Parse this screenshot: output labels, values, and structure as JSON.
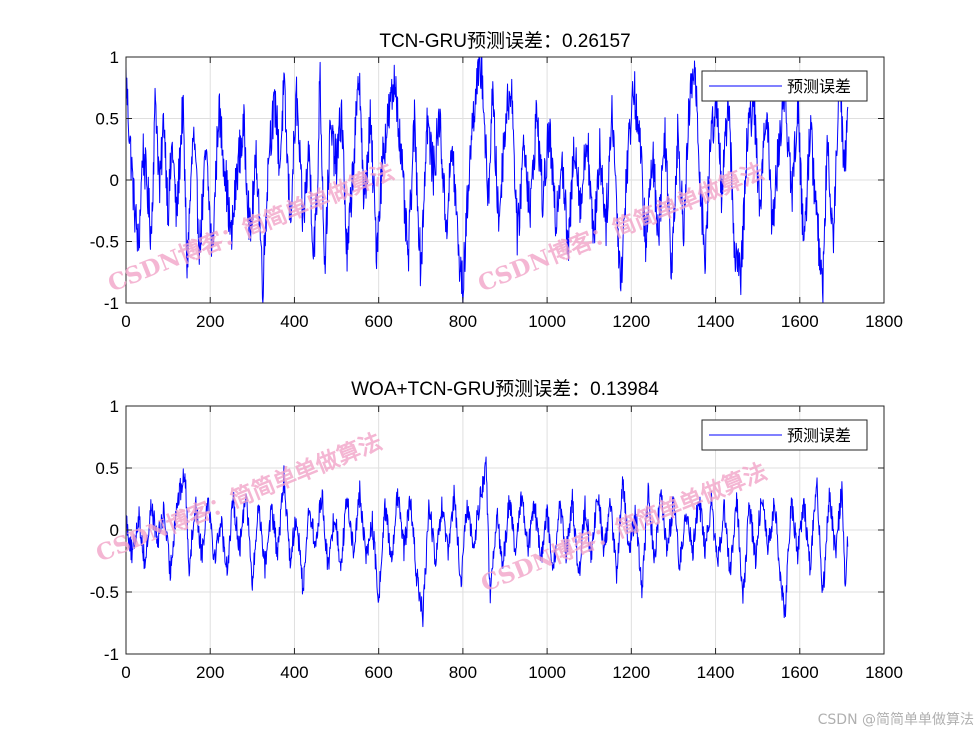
{
  "figure": {
    "colors": {
      "line": "#0000ff",
      "axes": "#262626",
      "grid": "#dfdfdf",
      "background": "#ffffff",
      "watermark": "#f2a4c8"
    },
    "watermarks": [
      "CSDN博客：简简单单做算法",
      "CSDN博客：简简单单做算法",
      "CSDN博客：简简单单做算法",
      "CSDN博客：简简单单做算法"
    ],
    "credit": "CSDN @简简单单做算法"
  },
  "chart_data": [
    {
      "type": "line",
      "title": "TCN-GRU预测误差：0.26157",
      "xlabel": "",
      "ylabel": "",
      "xlim": [
        0,
        1800
      ],
      "ylim": [
        -1,
        1
      ],
      "xticks": [
        0,
        200,
        400,
        600,
        800,
        1000,
        1200,
        1400,
        1600,
        1800
      ],
      "xtick_labels": [
        "0",
        "200",
        "400",
        "600",
        "800",
        "1000",
        "1200",
        "1400",
        "1600",
        "1800"
      ],
      "yticks": [
        -1,
        -0.5,
        0,
        0.5,
        1
      ],
      "ytick_labels": [
        "-1",
        "-0.5",
        "0",
        "0.5",
        "1"
      ],
      "grid": true,
      "legend_position": "top-right",
      "series": [
        {
          "name": "预测误差",
          "n_points": 1715,
          "anchors": [
            [
              0,
              0.84
            ],
            [
              10,
              0.28
            ],
            [
              20,
              -0.22
            ],
            [
              30,
              -0.55
            ],
            [
              40,
              0.25
            ],
            [
              50,
              -0.05
            ],
            [
              60,
              -0.46
            ],
            [
              70,
              0.7
            ],
            [
              80,
              -0.1
            ],
            [
              90,
              0.52
            ],
            [
              100,
              -0.25
            ],
            [
              110,
              0.3
            ],
            [
              120,
              -0.32
            ],
            [
              135,
              0.62
            ],
            [
              145,
              -0.7
            ],
            [
              160,
              0.38
            ],
            [
              175,
              -0.55
            ],
            [
              190,
              0.22
            ],
            [
              205,
              -0.62
            ],
            [
              220,
              0.58
            ],
            [
              235,
              0.1
            ],
            [
              250,
              -0.5
            ],
            [
              265,
              0.12
            ],
            [
              280,
              0.42
            ],
            [
              295,
              -0.46
            ],
            [
              310,
              0.18
            ],
            [
              325,
              -0.85
            ],
            [
              340,
              0.3
            ],
            [
              355,
              0.62
            ],
            [
              365,
              0.1
            ],
            [
              375,
              0.76
            ],
            [
              390,
              -0.34
            ],
            [
              405,
              0.68
            ],
            [
              420,
              -0.35
            ],
            [
              435,
              0.25
            ],
            [
              445,
              -0.58
            ],
            [
              455,
              -0.1
            ],
            [
              460,
              0.92
            ],
            [
              472,
              -0.7
            ],
            [
              485,
              0.4
            ],
            [
              500,
              0.12
            ],
            [
              512,
              0.58
            ],
            [
              525,
              -0.66
            ],
            [
              540,
              0.15
            ],
            [
              555,
              0.88
            ],
            [
              565,
              -0.24
            ],
            [
              580,
              0.48
            ],
            [
              595,
              -0.55
            ],
            [
              610,
              0.21
            ],
            [
              625,
              0.55
            ],
            [
              640,
              0.82
            ],
            [
              655,
              0.1
            ],
            [
              670,
              -0.66
            ],
            [
              685,
              0.48
            ],
            [
              700,
              -0.75
            ],
            [
              715,
              0.5
            ],
            [
              730,
              0.05
            ],
            [
              745,
              0.52
            ],
            [
              760,
              -0.4
            ],
            [
              775,
              0.28
            ],
            [
              790,
              -0.6
            ],
            [
              800,
              -0.9
            ],
            [
              815,
              0.1
            ],
            [
              830,
              0.74
            ],
            [
              845,
              0.93
            ],
            [
              860,
              -0.2
            ],
            [
              870,
              0.72
            ],
            [
              885,
              -0.35
            ],
            [
              900,
              0.45
            ],
            [
              915,
              0.8
            ],
            [
              930,
              -0.5
            ],
            [
              945,
              0.35
            ],
            [
              960,
              -0.28
            ],
            [
              975,
              0.56
            ],
            [
              990,
              -0.18
            ],
            [
              1005,
              0.42
            ],
            [
              1020,
              -0.35
            ],
            [
              1035,
              0.22
            ],
            [
              1050,
              -0.6
            ],
            [
              1065,
              0.34
            ],
            [
              1080,
              -0.22
            ],
            [
              1095,
              0.4
            ],
            [
              1110,
              -0.52
            ],
            [
              1125,
              0.24
            ],
            [
              1140,
              -0.35
            ],
            [
              1155,
              0.6
            ],
            [
              1165,
              -0.2
            ],
            [
              1175,
              -0.84
            ],
            [
              1190,
              0.12
            ],
            [
              1205,
              0.78
            ],
            [
              1220,
              0.32
            ],
            [
              1235,
              -0.55
            ],
            [
              1250,
              0.22
            ],
            [
              1265,
              -0.42
            ],
            [
              1280,
              0.4
            ],
            [
              1295,
              -0.7
            ],
            [
              1310,
              0.35
            ],
            [
              1325,
              -0.4
            ],
            [
              1338,
              0.62
            ],
            [
              1350,
              0.92
            ],
            [
              1362,
              0.1
            ],
            [
              1375,
              -0.66
            ],
            [
              1390,
              0.42
            ],
            [
              1405,
              0.63
            ],
            [
              1415,
              -0.2
            ],
            [
              1430,
              0.72
            ],
            [
              1445,
              -0.55
            ],
            [
              1460,
              -0.82
            ],
            [
              1475,
              0.3
            ],
            [
              1490,
              0.68
            ],
            [
              1505,
              -0.25
            ],
            [
              1520,
              0.66
            ],
            [
              1535,
              -0.4
            ],
            [
              1550,
              0.28
            ],
            [
              1565,
              0.75
            ],
            [
              1580,
              -0.16
            ],
            [
              1595,
              0.6
            ],
            [
              1610,
              -0.55
            ],
            [
              1625,
              0.45
            ],
            [
              1640,
              -0.3
            ],
            [
              1655,
              -0.9
            ],
            [
              1665,
              0.3
            ],
            [
              1680,
              -0.45
            ],
            [
              1695,
              0.92
            ],
            [
              1705,
              0.08
            ],
            [
              1715,
              0.52
            ]
          ],
          "noise_amplitude": 0.2
        }
      ]
    },
    {
      "type": "line",
      "title": "WOA+TCN-GRU预测误差：0.13984",
      "xlabel": "",
      "ylabel": "",
      "xlim": [
        0,
        1800
      ],
      "ylim": [
        -1,
        1
      ],
      "xticks": [
        0,
        200,
        400,
        600,
        800,
        1000,
        1200,
        1400,
        1600,
        1800
      ],
      "xtick_labels": [
        "0",
        "200",
        "400",
        "600",
        "800",
        "1000",
        "1200",
        "1400",
        "1600",
        "1800"
      ],
      "yticks": [
        -1,
        -0.5,
        0,
        0.5,
        1
      ],
      "ytick_labels": [
        "-1",
        "-0.5",
        "0",
        "0.5",
        "1"
      ],
      "grid": true,
      "legend_position": "top-right",
      "series": [
        {
          "name": "预测误差",
          "n_points": 1715,
          "anchors": [
            [
              0,
              0.1
            ],
            [
              15,
              -0.22
            ],
            [
              30,
              0.12
            ],
            [
              45,
              -0.28
            ],
            [
              60,
              0.2
            ],
            [
              75,
              -0.1
            ],
            [
              90,
              0.16
            ],
            [
              105,
              -0.35
            ],
            [
              120,
              0.2
            ],
            [
              140,
              0.46
            ],
            [
              150,
              -0.3
            ],
            [
              165,
              0.22
            ],
            [
              180,
              -0.2
            ],
            [
              195,
              0.3
            ],
            [
              210,
              -0.24
            ],
            [
              225,
              0.08
            ],
            [
              240,
              -0.32
            ],
            [
              255,
              0.25
            ],
            [
              270,
              -0.16
            ],
            [
              285,
              0.35
            ],
            [
              300,
              -0.46
            ],
            [
              315,
              0.22
            ],
            [
              330,
              -0.3
            ],
            [
              345,
              0.18
            ],
            [
              360,
              -0.2
            ],
            [
              375,
              0.42
            ],
            [
              390,
              -0.24
            ],
            [
              405,
              0.12
            ],
            [
              420,
              -0.48
            ],
            [
              435,
              0.2
            ],
            [
              450,
              -0.15
            ],
            [
              465,
              0.3
            ],
            [
              480,
              -0.32
            ],
            [
              495,
              0.14
            ],
            [
              510,
              -0.28
            ],
            [
              525,
              0.26
            ],
            [
              540,
              -0.16
            ],
            [
              555,
              0.3
            ],
            [
              570,
              -0.22
            ],
            [
              585,
              0.06
            ],
            [
              600,
              -0.58
            ],
            [
              615,
              0.2
            ],
            [
              630,
              -0.24
            ],
            [
              645,
              0.28
            ],
            [
              660,
              -0.15
            ],
            [
              675,
              0.24
            ],
            [
              690,
              -0.36
            ],
            [
              705,
              -0.7
            ],
            [
              720,
              0.22
            ],
            [
              735,
              -0.28
            ],
            [
              750,
              0.18
            ],
            [
              765,
              -0.2
            ],
            [
              780,
              0.3
            ],
            [
              795,
              -0.46
            ],
            [
              810,
              0.22
            ],
            [
              825,
              -0.15
            ],
            [
              840,
              0.24
            ],
            [
              855,
              0.53
            ],
            [
              865,
              -0.6
            ],
            [
              880,
              0.14
            ],
            [
              895,
              -0.3
            ],
            [
              910,
              0.26
            ],
            [
              925,
              -0.2
            ],
            [
              940,
              0.3
            ],
            [
              955,
              -0.16
            ],
            [
              970,
              0.22
            ],
            [
              985,
              -0.26
            ],
            [
              1000,
              0.14
            ],
            [
              1015,
              -0.34
            ],
            [
              1030,
              0.2
            ],
            [
              1045,
              -0.2
            ],
            [
              1060,
              0.26
            ],
            [
              1075,
              -0.4
            ],
            [
              1090,
              0.18
            ],
            [
              1105,
              -0.22
            ],
            [
              1120,
              0.3
            ],
            [
              1135,
              -0.16
            ],
            [
              1150,
              0.22
            ],
            [
              1165,
              -0.34
            ],
            [
              1180,
              0.38
            ],
            [
              1195,
              -0.2
            ],
            [
              1210,
              0.16
            ],
            [
              1225,
              -0.48
            ],
            [
              1240,
              0.3
            ],
            [
              1255,
              -0.24
            ],
            [
              1270,
              0.35
            ],
            [
              1285,
              -0.18
            ],
            [
              1300,
              0.24
            ],
            [
              1315,
              -0.3
            ],
            [
              1330,
              0.2
            ],
            [
              1345,
              -0.22
            ],
            [
              1360,
              0.28
            ],
            [
              1375,
              -0.16
            ],
            [
              1390,
              0.22
            ],
            [
              1405,
              -0.3
            ],
            [
              1420,
              0.18
            ],
            [
              1435,
              -0.36
            ],
            [
              1450,
              0.26
            ],
            [
              1465,
              -0.58
            ],
            [
              1480,
              0.2
            ],
            [
              1495,
              -0.22
            ],
            [
              1510,
              0.3
            ],
            [
              1525,
              -0.16
            ],
            [
              1540,
              0.24
            ],
            [
              1555,
              -0.4
            ],
            [
              1565,
              -0.7
            ],
            [
              1580,
              0.26
            ],
            [
              1595,
              -0.18
            ],
            [
              1610,
              0.22
            ],
            [
              1625,
              -0.3
            ],
            [
              1640,
              0.42
            ],
            [
              1655,
              -0.55
            ],
            [
              1670,
              0.3
            ],
            [
              1685,
              -0.2
            ],
            [
              1700,
              0.35
            ],
            [
              1708,
              -0.48
            ],
            [
              1715,
              0.0
            ]
          ],
          "noise_amplitude": 0.1
        }
      ]
    }
  ]
}
